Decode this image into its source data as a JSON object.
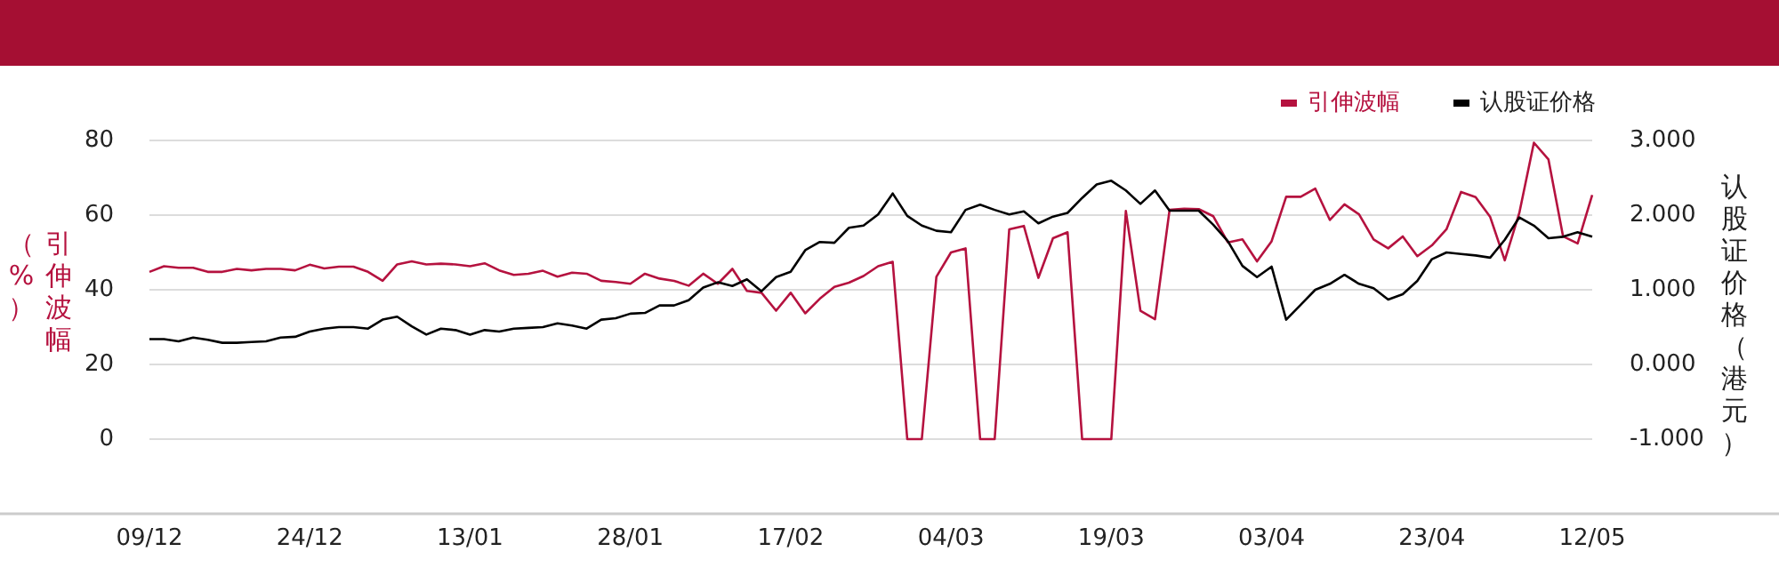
{
  "chart_data": {
    "type": "line",
    "categories": [
      "09/12",
      null,
      null,
      null,
      null,
      null,
      null,
      null,
      null,
      null,
      null,
      "24/12",
      null,
      null,
      null,
      null,
      null,
      null,
      null,
      null,
      null,
      null,
      "13/01",
      null,
      null,
      null,
      null,
      null,
      null,
      null,
      null,
      null,
      null,
      "28/01",
      null,
      null,
      null,
      null,
      null,
      null,
      null,
      null,
      null,
      null,
      "17/02",
      null,
      null,
      null,
      null,
      null,
      null,
      null,
      null,
      null,
      null,
      "04/03",
      null,
      null,
      null,
      null,
      null,
      null,
      null,
      null,
      null,
      null,
      "19/03",
      null,
      null,
      null,
      null,
      null,
      null,
      null,
      null,
      null,
      null,
      "03/04",
      null,
      null,
      null,
      null,
      null,
      null,
      null,
      null,
      null,
      null,
      "23/04",
      null,
      null,
      null,
      null,
      null,
      null,
      null,
      null,
      null,
      null,
      "12/05"
    ],
    "series": [
      {
        "name": "引伸波幅",
        "color": "#b5123f",
        "values": [
          44.8,
          46.3,
          45.9,
          45.9,
          44.8,
          44.8,
          45.6,
          45.2,
          45.6,
          45.6,
          45.2,
          46.7,
          45.7,
          46.2,
          46.2,
          44.8,
          42.4,
          46.8,
          47.6,
          46.8,
          47.0,
          46.8,
          46.3,
          47.1,
          45.2,
          44.0,
          44.3,
          45.1,
          43.5,
          44.6,
          44.3,
          42.4,
          42.1,
          41.6,
          44.3,
          43.0,
          42.4,
          41.1,
          44.3,
          41.6,
          45.6,
          39.7,
          39.2,
          34.4,
          39.2,
          33.7,
          37.6,
          40.8,
          41.9,
          43.7,
          46.3,
          47.5,
          0,
          0,
          43.5,
          50.0,
          51.1,
          0,
          0,
          56.2,
          57.1,
          43.2,
          53.8,
          55.4,
          0,
          0,
          0,
          61.1,
          34.4,
          32.1,
          61.4,
          61.7,
          61.6,
          59.7,
          52.7,
          53.5,
          47.6,
          53.0,
          64.9,
          64.9,
          67.1,
          58.7,
          62.9,
          60.2,
          53.5,
          51.1,
          54.3,
          49.0,
          51.9,
          56.2,
          66.2,
          64.8,
          59.5,
          47.9,
          60.6,
          79.4,
          74.9,
          54.3,
          52.4,
          65.4
        ]
      },
      {
        "name": "认股证价格",
        "color": "#000000",
        "axis": "y2",
        "values": [
          0.34,
          0.34,
          0.31,
          0.36,
          0.33,
          0.29,
          0.29,
          0.3,
          0.31,
          0.36,
          0.37,
          0.44,
          0.48,
          0.5,
          0.5,
          0.48,
          0.6,
          0.64,
          0.51,
          0.4,
          0.48,
          0.46,
          0.4,
          0.46,
          0.44,
          0.48,
          0.49,
          0.5,
          0.55,
          0.52,
          0.48,
          0.6,
          0.62,
          0.68,
          0.69,
          0.79,
          0.79,
          0.86,
          1.03,
          1.1,
          1.05,
          1.14,
          0.98,
          1.17,
          1.24,
          1.53,
          1.64,
          1.63,
          1.83,
          1.86,
          2.01,
          2.29,
          1.99,
          1.86,
          1.79,
          1.77,
          2.07,
          2.14,
          2.07,
          2.01,
          2.05,
          1.89,
          1.98,
          2.03,
          2.23,
          2.41,
          2.46,
          2.33,
          2.15,
          2.33,
          2.06,
          2.06,
          2.06,
          1.87,
          1.65,
          1.32,
          1.17,
          1.31,
          0.6,
          0.8,
          1.0,
          1.08,
          1.2,
          1.08,
          1.02,
          0.87,
          0.94,
          1.12,
          1.41,
          1.5,
          1.48,
          1.46,
          1.43,
          1.67,
          1.97,
          1.86,
          1.69,
          1.71,
          1.77,
          1.71
        ]
      }
    ],
    "ylabel": "引伸波幅（%）",
    "y2label": "认股证价格（港元）",
    "ylim": [
      -20,
      80
    ],
    "yticks": [
      0,
      20,
      40,
      60,
      80
    ],
    "y2lim": [
      -2,
      3
    ],
    "y2ticks": [
      {
        "value": -1,
        "label": "-1.000"
      },
      {
        "value": 0,
        "label": "0.000"
      },
      {
        "value": 1,
        "label": "1.000"
      },
      {
        "value": 2,
        "label": "2.000"
      },
      {
        "value": 3,
        "label": "3.000"
      }
    ],
    "grid": "y",
    "legend": "top right"
  }
}
